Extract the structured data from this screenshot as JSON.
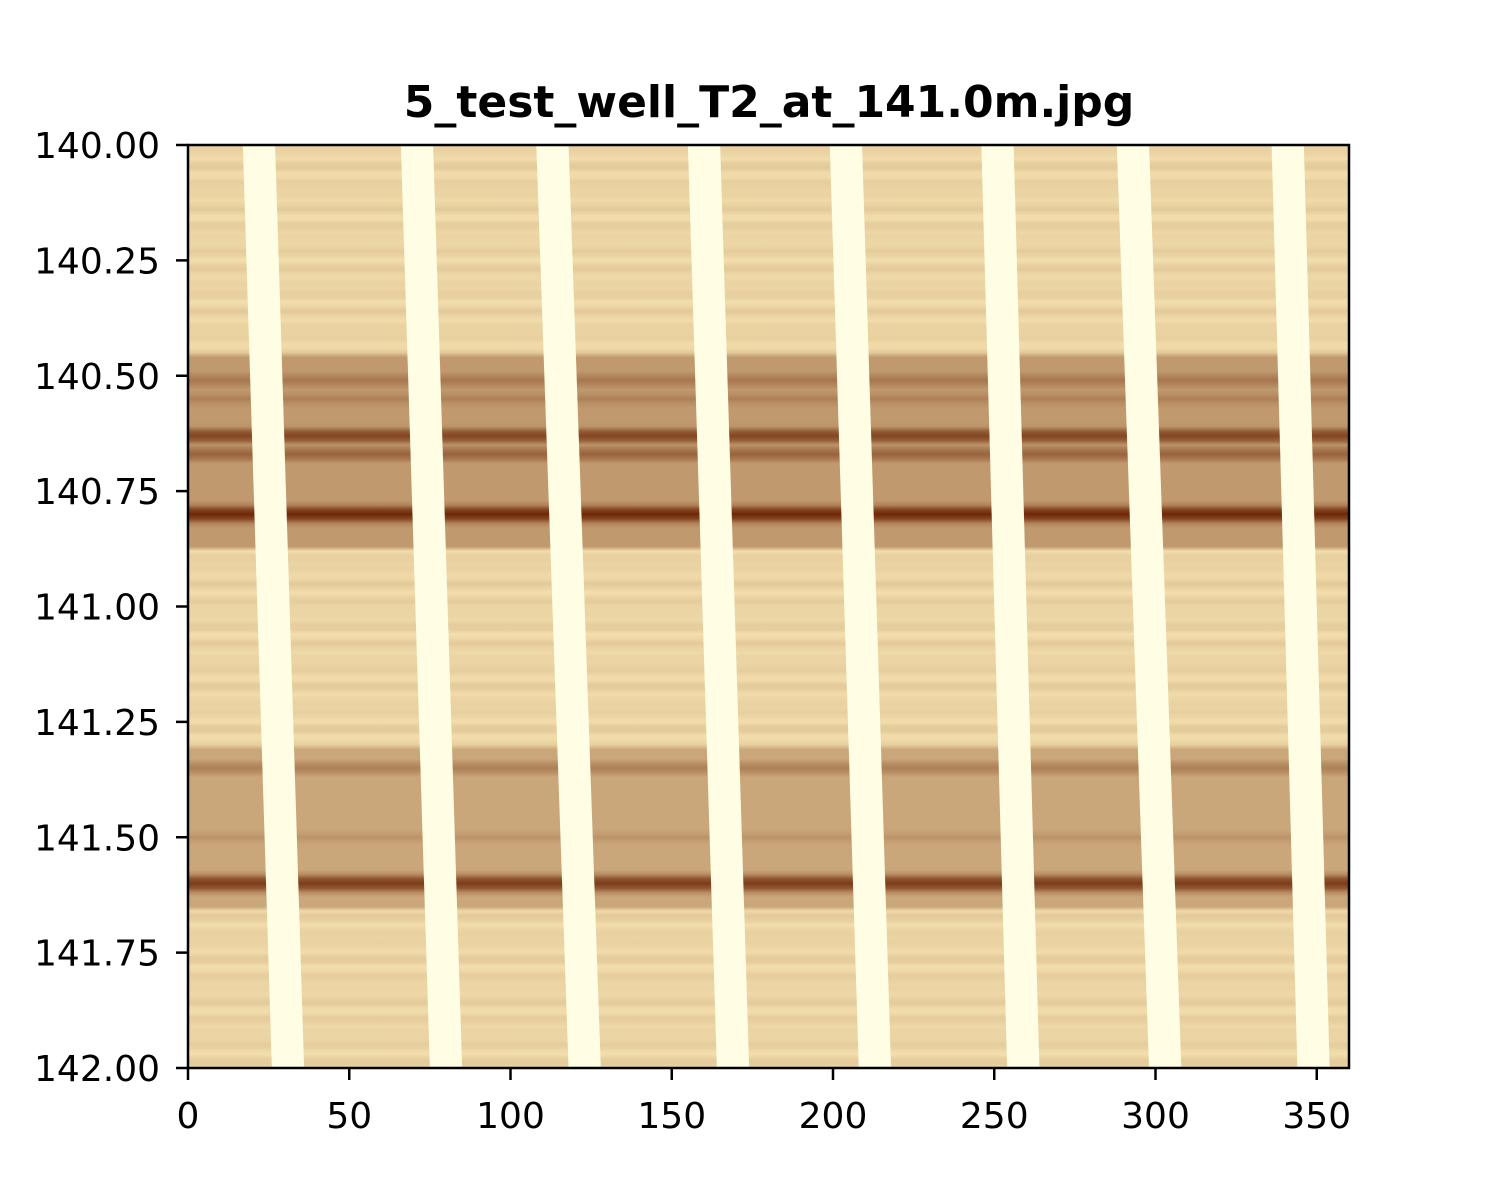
{
  "chart_data": {
    "type": "heatmap",
    "title": "5_test_well_T2_at_141.0m.jpg",
    "xlabel": "",
    "ylabel": "",
    "xlim": [
      0,
      360
    ],
    "ylim": [
      140.0,
      142.0
    ],
    "y_inverted": true,
    "x_ticks": [
      "0",
      "50",
      "100",
      "150",
      "200",
      "250",
      "300",
      "350"
    ],
    "y_ticks": [
      "140.00",
      "140.25",
      "140.50",
      "140.75",
      "141.00",
      "141.25",
      "141.50",
      "141.75",
      "142.00"
    ],
    "colormap": "YlOrBr",
    "colors": {
      "background": "#fcebb8",
      "gap": "#fffde4",
      "band_dark": "#6e2808",
      "band_mid": "#a44a0c",
      "band_light": "#d07c22"
    },
    "dark_bands": [
      {
        "depth": 140.51,
        "intensity": 0.6
      },
      {
        "depth": 140.55,
        "intensity": 0.55
      },
      {
        "depth": 140.63,
        "intensity": 0.85
      },
      {
        "depth": 140.67,
        "intensity": 0.7
      },
      {
        "depth": 140.8,
        "intensity": 1.0
      },
      {
        "depth": 141.35,
        "intensity": 0.55
      },
      {
        "depth": 141.5,
        "intensity": 0.45
      },
      {
        "depth": 141.6,
        "intensity": 0.9
      }
    ],
    "pad_gaps": [
      {
        "x_top": 17,
        "x_bottom": 26,
        "width": 10
      },
      {
        "x_top": 66,
        "x_bottom": 75,
        "width": 10
      },
      {
        "x_top": 108,
        "x_bottom": 118,
        "width": 10
      },
      {
        "x_top": 155,
        "x_bottom": 164,
        "width": 10
      },
      {
        "x_top": 199,
        "x_bottom": 208,
        "width": 10
      },
      {
        "x_top": 246,
        "x_bottom": 254,
        "width": 10
      },
      {
        "x_top": 288,
        "x_bottom": 298,
        "width": 10
      },
      {
        "x_top": 336,
        "x_bottom": 344,
        "width": 10
      }
    ]
  }
}
